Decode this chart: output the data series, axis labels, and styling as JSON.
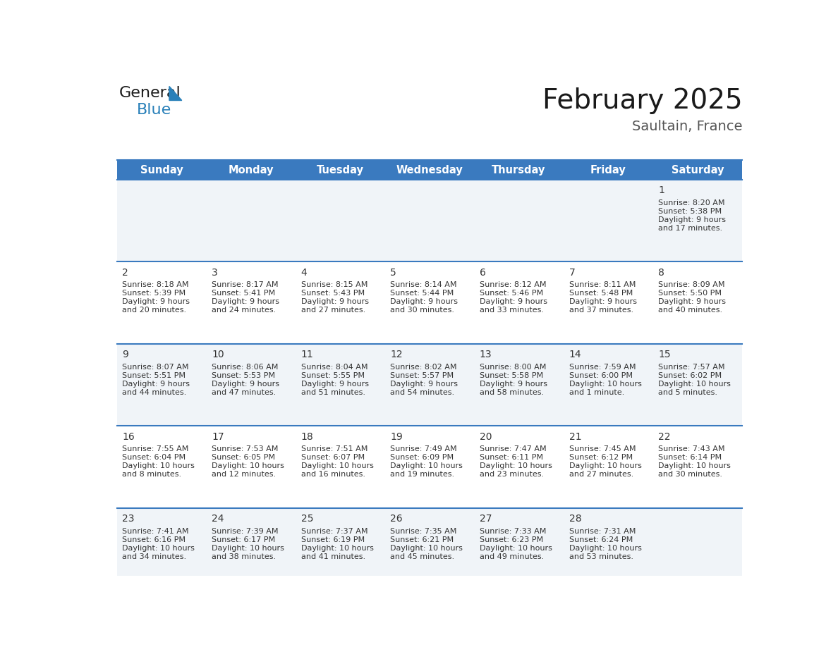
{
  "title": "February 2025",
  "subtitle": "Saultain, France",
  "header_bg": "#3a7abf",
  "header_text_color": "#ffffff",
  "cell_bg_odd": "#f0f4f8",
  "cell_bg_even": "#ffffff",
  "text_color": "#333333",
  "line_color": "#3a7abf",
  "day_headers": [
    "Sunday",
    "Monday",
    "Tuesday",
    "Wednesday",
    "Thursday",
    "Friday",
    "Saturday"
  ],
  "days": [
    {
      "day": 1,
      "col": 6,
      "row": 0,
      "sunrise": "8:20 AM",
      "sunset": "5:38 PM",
      "daylight": "9 hours",
      "daylight2": "and 17 minutes."
    },
    {
      "day": 2,
      "col": 0,
      "row": 1,
      "sunrise": "8:18 AM",
      "sunset": "5:39 PM",
      "daylight": "9 hours",
      "daylight2": "and 20 minutes."
    },
    {
      "day": 3,
      "col": 1,
      "row": 1,
      "sunrise": "8:17 AM",
      "sunset": "5:41 PM",
      "daylight": "9 hours",
      "daylight2": "and 24 minutes."
    },
    {
      "day": 4,
      "col": 2,
      "row": 1,
      "sunrise": "8:15 AM",
      "sunset": "5:43 PM",
      "daylight": "9 hours",
      "daylight2": "and 27 minutes."
    },
    {
      "day": 5,
      "col": 3,
      "row": 1,
      "sunrise": "8:14 AM",
      "sunset": "5:44 PM",
      "daylight": "9 hours",
      "daylight2": "and 30 minutes."
    },
    {
      "day": 6,
      "col": 4,
      "row": 1,
      "sunrise": "8:12 AM",
      "sunset": "5:46 PM",
      "daylight": "9 hours",
      "daylight2": "and 33 minutes."
    },
    {
      "day": 7,
      "col": 5,
      "row": 1,
      "sunrise": "8:11 AM",
      "sunset": "5:48 PM",
      "daylight": "9 hours",
      "daylight2": "and 37 minutes."
    },
    {
      "day": 8,
      "col": 6,
      "row": 1,
      "sunrise": "8:09 AM",
      "sunset": "5:50 PM",
      "daylight": "9 hours",
      "daylight2": "and 40 minutes."
    },
    {
      "day": 9,
      "col": 0,
      "row": 2,
      "sunrise": "8:07 AM",
      "sunset": "5:51 PM",
      "daylight": "9 hours",
      "daylight2": "and 44 minutes."
    },
    {
      "day": 10,
      "col": 1,
      "row": 2,
      "sunrise": "8:06 AM",
      "sunset": "5:53 PM",
      "daylight": "9 hours",
      "daylight2": "and 47 minutes."
    },
    {
      "day": 11,
      "col": 2,
      "row": 2,
      "sunrise": "8:04 AM",
      "sunset": "5:55 PM",
      "daylight": "9 hours",
      "daylight2": "and 51 minutes."
    },
    {
      "day": 12,
      "col": 3,
      "row": 2,
      "sunrise": "8:02 AM",
      "sunset": "5:57 PM",
      "daylight": "9 hours",
      "daylight2": "and 54 minutes."
    },
    {
      "day": 13,
      "col": 4,
      "row": 2,
      "sunrise": "8:00 AM",
      "sunset": "5:58 PM",
      "daylight": "9 hours",
      "daylight2": "and 58 minutes."
    },
    {
      "day": 14,
      "col": 5,
      "row": 2,
      "sunrise": "7:59 AM",
      "sunset": "6:00 PM",
      "daylight": "10 hours",
      "daylight2": "and 1 minute."
    },
    {
      "day": 15,
      "col": 6,
      "row": 2,
      "sunrise": "7:57 AM",
      "sunset": "6:02 PM",
      "daylight": "10 hours",
      "daylight2": "and 5 minutes."
    },
    {
      "day": 16,
      "col": 0,
      "row": 3,
      "sunrise": "7:55 AM",
      "sunset": "6:04 PM",
      "daylight": "10 hours",
      "daylight2": "and 8 minutes."
    },
    {
      "day": 17,
      "col": 1,
      "row": 3,
      "sunrise": "7:53 AM",
      "sunset": "6:05 PM",
      "daylight": "10 hours",
      "daylight2": "and 12 minutes."
    },
    {
      "day": 18,
      "col": 2,
      "row": 3,
      "sunrise": "7:51 AM",
      "sunset": "6:07 PM",
      "daylight": "10 hours",
      "daylight2": "and 16 minutes."
    },
    {
      "day": 19,
      "col": 3,
      "row": 3,
      "sunrise": "7:49 AM",
      "sunset": "6:09 PM",
      "daylight": "10 hours",
      "daylight2": "and 19 minutes."
    },
    {
      "day": 20,
      "col": 4,
      "row": 3,
      "sunrise": "7:47 AM",
      "sunset": "6:11 PM",
      "daylight": "10 hours",
      "daylight2": "and 23 minutes."
    },
    {
      "day": 21,
      "col": 5,
      "row": 3,
      "sunrise": "7:45 AM",
      "sunset": "6:12 PM",
      "daylight": "10 hours",
      "daylight2": "and 27 minutes."
    },
    {
      "day": 22,
      "col": 6,
      "row": 3,
      "sunrise": "7:43 AM",
      "sunset": "6:14 PM",
      "daylight": "10 hours",
      "daylight2": "and 30 minutes."
    },
    {
      "day": 23,
      "col": 0,
      "row": 4,
      "sunrise": "7:41 AM",
      "sunset": "6:16 PM",
      "daylight": "10 hours",
      "daylight2": "and 34 minutes."
    },
    {
      "day": 24,
      "col": 1,
      "row": 4,
      "sunrise": "7:39 AM",
      "sunset": "6:17 PM",
      "daylight": "10 hours",
      "daylight2": "and 38 minutes."
    },
    {
      "day": 25,
      "col": 2,
      "row": 4,
      "sunrise": "7:37 AM",
      "sunset": "6:19 PM",
      "daylight": "10 hours",
      "daylight2": "and 41 minutes."
    },
    {
      "day": 26,
      "col": 3,
      "row": 4,
      "sunrise": "7:35 AM",
      "sunset": "6:21 PM",
      "daylight": "10 hours",
      "daylight2": "and 45 minutes."
    },
    {
      "day": 27,
      "col": 4,
      "row": 4,
      "sunrise": "7:33 AM",
      "sunset": "6:23 PM",
      "daylight": "10 hours",
      "daylight2": "and 49 minutes."
    },
    {
      "day": 28,
      "col": 5,
      "row": 4,
      "sunrise": "7:31 AM",
      "sunset": "6:24 PM",
      "daylight": "10 hours",
      "daylight2": "and 53 minutes."
    }
  ],
  "num_rows": 5,
  "num_cols": 7
}
